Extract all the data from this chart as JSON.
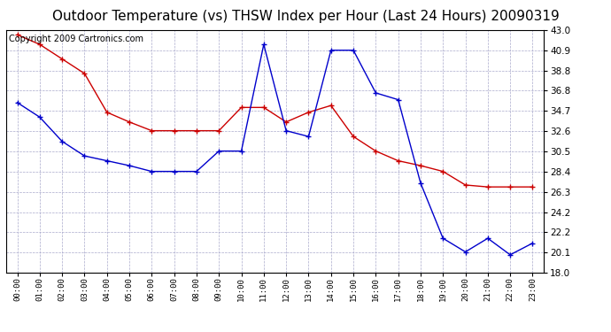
{
  "title": "Outdoor Temperature (vs) THSW Index per Hour (Last 24 Hours) 20090319",
  "copyright": "Copyright 2009 Cartronics.com",
  "hours": [
    "00:00",
    "01:00",
    "02:00",
    "03:00",
    "04:00",
    "05:00",
    "06:00",
    "07:00",
    "08:00",
    "09:00",
    "10:00",
    "11:00",
    "12:00",
    "13:00",
    "14:00",
    "15:00",
    "16:00",
    "17:00",
    "18:00",
    "19:00",
    "20:00",
    "21:00",
    "22:00",
    "23:00"
  ],
  "temp_red": [
    42.5,
    41.5,
    40.0,
    38.5,
    34.5,
    33.5,
    32.6,
    32.6,
    32.6,
    32.6,
    35.0,
    35.0,
    33.5,
    34.5,
    35.2,
    32.0,
    30.5,
    29.5,
    29.0,
    28.4,
    27.0,
    26.8,
    26.8,
    26.8
  ],
  "thsw_blue": [
    35.5,
    34.0,
    31.5,
    30.0,
    29.5,
    29.0,
    28.4,
    28.4,
    28.4,
    30.5,
    30.5,
    41.5,
    32.6,
    32.0,
    40.9,
    40.9,
    36.5,
    35.8,
    27.2,
    21.5,
    20.1,
    21.5,
    19.8,
    21.0
  ],
  "ylim_min": 18.0,
  "ylim_max": 43.0,
  "yticks": [
    18.0,
    20.1,
    22.2,
    24.2,
    26.3,
    28.4,
    30.5,
    32.6,
    34.7,
    36.8,
    38.8,
    40.9,
    43.0
  ],
  "red_color": "#cc0000",
  "blue_color": "#0000cc",
  "grid_color": "#aaaacc",
  "bg_color": "#ffffff",
  "title_fontsize": 11,
  "copyright_fontsize": 7
}
